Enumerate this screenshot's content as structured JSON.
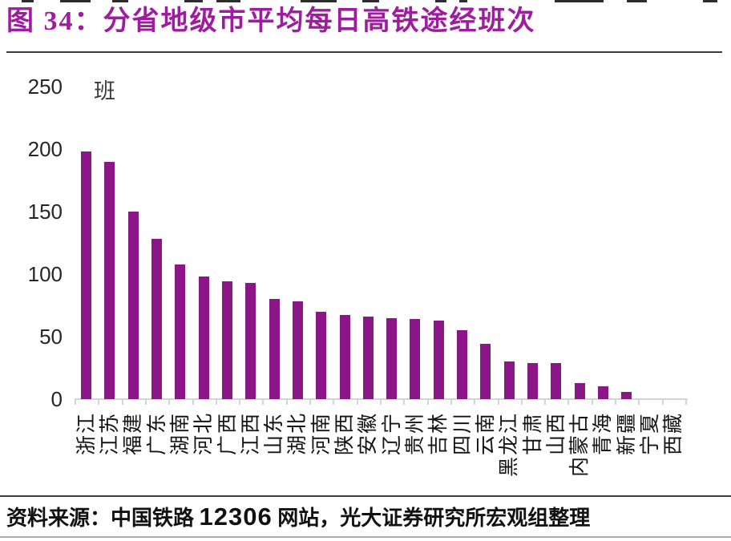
{
  "figure": {
    "title": "图 34：分省地级市平均每日高铁途经班次",
    "source_prefix": "资料来源：中国铁路 ",
    "source_number": "12306",
    "source_suffix": " 网站，光大证券研究所宏观组整理"
  },
  "colors": {
    "bar": "#8C1687",
    "title": "#9E1D9F",
    "axis": "#D4D4D4"
  },
  "chart_data": {
    "type": "bar",
    "title": "分省地级市平均每日高铁途经班次",
    "unit_label": "班",
    "categories": [
      "浙江",
      "江苏",
      "福建",
      "广东",
      "湖南",
      "河北",
      "广西",
      "江西",
      "山东",
      "湖北",
      "河南",
      "陕西",
      "安徽",
      "辽宁",
      "贵州",
      "吉林",
      "四川",
      "云南",
      "黑龙江",
      "甘肃",
      "山西",
      "内蒙古",
      "青海",
      "新疆",
      "宁夏",
      "西藏"
    ],
    "values": [
      198,
      190,
      150,
      128,
      108,
      98,
      94,
      93,
      80,
      78,
      70,
      67,
      66,
      65,
      64,
      63,
      55,
      44,
      30,
      29,
      29,
      13,
      10,
      6,
      0,
      0
    ],
    "xlabel": "",
    "ylabel": "班",
    "ylim": [
      0,
      250
    ],
    "yticks": [
      0,
      50,
      100,
      150,
      200,
      250
    ],
    "grid": false,
    "legend": "none",
    "bar_orientation": "vertical",
    "x_label_rotation": -90
  }
}
